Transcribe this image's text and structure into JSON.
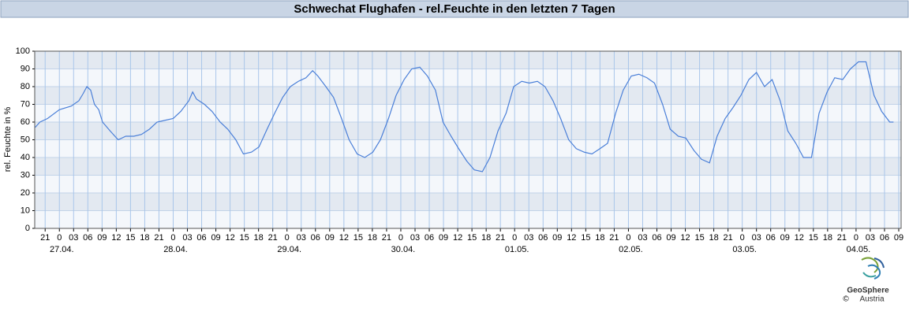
{
  "chart_data": {
    "type": "line",
    "title": "Schwechat Flughafen - rel.Feuchte in den letzten 7 Tagen",
    "ylabel": "rel. Feuchte in %",
    "xlim": [
      -5.2,
      177.5
    ],
    "ylim": [
      0,
      100
    ],
    "yticks": [
      0,
      10,
      20,
      30,
      40,
      50,
      60,
      70,
      80,
      90,
      100
    ],
    "xticks": [
      {
        "value": -3,
        "label": "21"
      },
      0,
      {
        "value": 3,
        "label": "03"
      },
      {
        "value": 6,
        "label": "06"
      },
      {
        "value": 9,
        "label": "09"
      },
      12,
      15,
      18,
      21,
      {
        "value": 24,
        "label": "0"
      },
      {
        "value": 27,
        "label": "03"
      },
      {
        "value": 30,
        "label": "06"
      },
      {
        "value": 33,
        "label": "09"
      },
      {
        "value": 36,
        "label": "12"
      },
      {
        "value": 39,
        "label": "15"
      },
      {
        "value": 42,
        "label": "18"
      },
      {
        "value": 45,
        "label": "21"
      },
      {
        "value": 48,
        "label": "0"
      },
      {
        "value": 51,
        "label": "03"
      },
      {
        "value": 54,
        "label": "06"
      },
      {
        "value": 57,
        "label": "09"
      },
      {
        "value": 60,
        "label": "12"
      },
      {
        "value": 63,
        "label": "15"
      },
      {
        "value": 66,
        "label": "18"
      },
      {
        "value": 69,
        "label": "21"
      },
      {
        "value": 72,
        "label": "0"
      },
      {
        "value": 75,
        "label": "03"
      },
      {
        "value": 78,
        "label": "06"
      },
      {
        "value": 81,
        "label": "09"
      },
      {
        "value": 84,
        "label": "12"
      },
      {
        "value": 87,
        "label": "15"
      },
      {
        "value": 90,
        "label": "18"
      },
      {
        "value": 93,
        "label": "21"
      },
      {
        "value": 96,
        "label": "0"
      },
      {
        "value": 99,
        "label": "03"
      },
      {
        "value": 102,
        "label": "06"
      },
      {
        "value": 105,
        "label": "09"
      },
      {
        "value": 108,
        "label": "12"
      },
      {
        "value": 111,
        "label": "15"
      },
      {
        "value": 114,
        "label": "18"
      },
      {
        "value": 117,
        "label": "21"
      },
      {
        "value": 120,
        "label": "0"
      },
      {
        "value": 123,
        "label": "03"
      },
      {
        "value": 126,
        "label": "06"
      },
      {
        "value": 129,
        "label": "09"
      },
      {
        "value": 132,
        "label": "12"
      },
      {
        "value": 135,
        "label": "15"
      },
      {
        "value": 138,
        "label": "18"
      },
      {
        "value": 141,
        "label": "21"
      },
      {
        "value": 144,
        "label": "0"
      },
      {
        "value": 147,
        "label": "03"
      },
      {
        "value": 150,
        "label": "06"
      },
      {
        "value": 153,
        "label": "09"
      },
      {
        "value": 156,
        "label": "12"
      },
      {
        "value": 159,
        "label": "15"
      },
      {
        "value": 162,
        "label": "18"
      },
      {
        "value": 165,
        "label": "21"
      },
      {
        "value": 168,
        "label": "0"
      },
      {
        "value": 171,
        "label": "03"
      },
      {
        "value": 174,
        "label": "06"
      },
      {
        "value": 177,
        "label": "09"
      }
    ],
    "date_ticks": [
      {
        "value": 0,
        "label": "27.04."
      },
      {
        "value": 24,
        "label": "28.04."
      },
      {
        "value": 48,
        "label": "29.04."
      },
      {
        "value": 72,
        "label": "30.04."
      },
      {
        "value": 96,
        "label": "01.05."
      },
      {
        "value": 120,
        "label": "02.05."
      },
      {
        "value": 144,
        "label": "03.05."
      },
      {
        "value": 168,
        "label": "04.05."
      }
    ],
    "grid": true,
    "bands": true,
    "color": "#4a7fd8",
    "x": [
      -5.1,
      -4.1,
      -2.5,
      0,
      2.5,
      4.1,
      5.0,
      5.8,
      6.6,
      7.4,
      8.3,
      9.1,
      10.7,
      12.4,
      14.0,
      15.7,
      17.3,
      19.0,
      20.6,
      22.3,
      24.0,
      25.6,
      27.3,
      28.1,
      28.9,
      30.6,
      32.2,
      33.9,
      35.5,
      37.2,
      38.8,
      40.5,
      42.1,
      43.8,
      45.4,
      47.1,
      48.7,
      50.4,
      52.0,
      53.4,
      54.5,
      56.2,
      57.8,
      59.5,
      61.1,
      62.8,
      64.4,
      66.1,
      67.7,
      69.4,
      71.0,
      72.7,
      74.3,
      76.0,
      77.6,
      79.3,
      80.9,
      82.6,
      84.2,
      85.9,
      87.5,
      89.2,
      90.8,
      92.5,
      94.2,
      95.8,
      97.5,
      99.1,
      100.8,
      102.4,
      104.1,
      105.7,
      107.4,
      109.0,
      110.7,
      112.3,
      114.0,
      115.6,
      117.3,
      118.9,
      120.6,
      122.2,
      123.9,
      125.5,
      127.2,
      128.8,
      130.5,
      132.1,
      133.8,
      135.4,
      137.1,
      138.7,
      140.4,
      142.0,
      143.7,
      145.4,
      147.0,
      148.7,
      150.3,
      152.0,
      153.6,
      155.3,
      156.9,
      158.6,
      160.2,
      161.9,
      163.5,
      165.2,
      166.8,
      168.5,
      170.1,
      171.8,
      173.4,
      175.1,
      175.9
    ],
    "values": [
      57,
      60,
      62,
      67,
      69,
      72,
      76,
      80,
      78,
      70,
      67,
      60,
      55,
      50,
      52,
      52,
      53,
      56,
      60,
      61,
      62,
      66,
      72,
      77,
      73,
      70,
      66,
      60,
      56,
      50,
      42,
      43,
      46,
      56,
      65,
      74,
      80,
      83,
      85,
      89,
      86,
      80,
      74,
      62,
      50,
      42,
      40,
      43,
      50,
      62,
      75,
      84,
      90,
      91,
      86,
      78,
      60,
      52,
      45,
      38,
      33,
      32,
      40,
      55,
      65,
      80,
      83,
      82,
      83,
      80,
      72,
      62,
      50,
      45,
      43,
      42,
      45,
      48,
      65,
      78,
      86,
      87,
      85,
      82,
      70,
      56,
      52,
      51,
      44,
      39,
      37,
      52,
      62,
      68,
      75,
      84,
      88,
      80,
      84,
      72,
      55,
      48,
      40,
      40,
      65,
      77,
      85,
      84,
      90,
      94,
      94,
      75,
      66,
      60,
      60
    ]
  },
  "logo": {
    "name": "GeoSphere",
    "subname": "Austria",
    "copyright": "©"
  }
}
